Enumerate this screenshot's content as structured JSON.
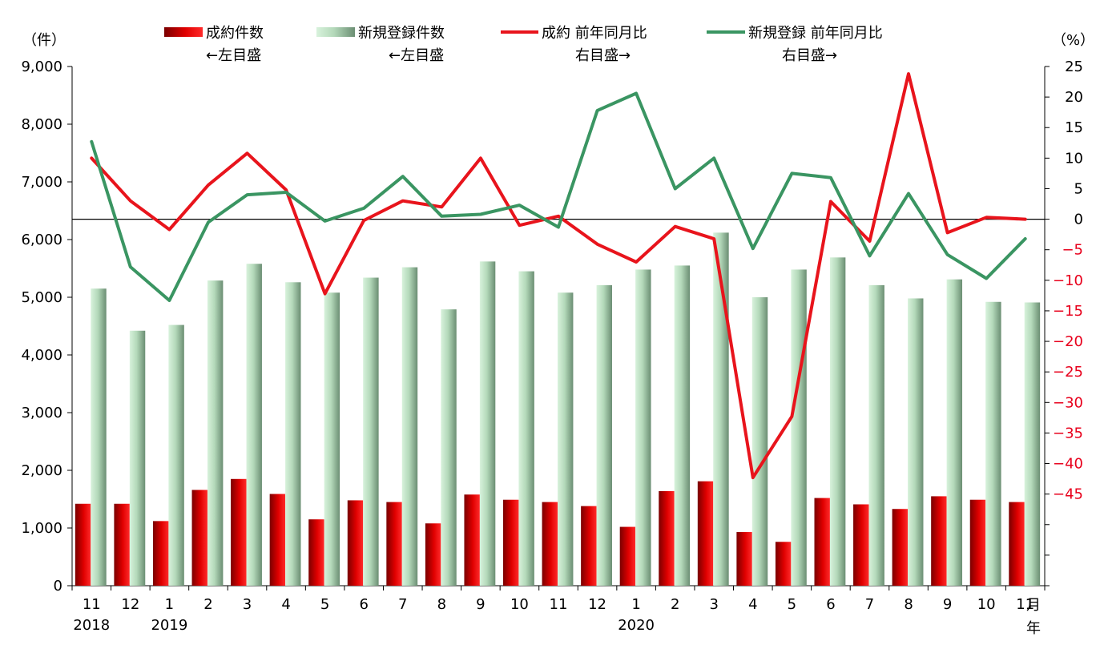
{
  "chart_data": {
    "type": "bar",
    "left_unit": "（件）",
    "right_unit": "（%）",
    "x_suffix_month": "月",
    "x_suffix_year": "年",
    "categories": [
      "11",
      "12",
      "1",
      "2",
      "3",
      "4",
      "5",
      "6",
      "7",
      "8",
      "9",
      "10",
      "11",
      "12",
      "1",
      "2",
      "3",
      "4",
      "5",
      "6",
      "7",
      "8",
      "9",
      "10",
      "11"
    ],
    "year_labels": [
      {
        "index": 0,
        "label": "2018"
      },
      {
        "index": 2,
        "label": "2019"
      },
      {
        "index": 14,
        "label": "2020"
      }
    ],
    "ylim_left": [
      0,
      9000
    ],
    "left_ticks": [
      "0",
      "1,000",
      "2,000",
      "3,000",
      "4,000",
      "5,000",
      "6,000",
      "7,000",
      "8,000",
      "9,000"
    ],
    "ylim_right": [
      -60,
      25
    ],
    "right_ticks": [
      25,
      20,
      15,
      10,
      5,
      0,
      -5,
      -10,
      -15,
      -20,
      -25,
      -30,
      -35,
      -40,
      -45
    ],
    "reference_line_right": 0,
    "series": [
      {
        "name": "成約件数",
        "legend_line2": "←左目盛",
        "kind": "bar",
        "axis": "left",
        "color": "#cc0000",
        "values": [
          1420,
          1420,
          1120,
          1660,
          1850,
          1590,
          1150,
          1480,
          1450,
          1080,
          1580,
          1490,
          1450,
          1380,
          1020,
          1640,
          1810,
          930,
          760,
          1520,
          1410,
          1330,
          1550,
          1490,
          1450
        ]
      },
      {
        "name": "新規登録件数",
        "legend_line2": "←左目盛",
        "kind": "bar",
        "axis": "left",
        "color": "#7aa784",
        "values": [
          5150,
          4420,
          4520,
          5290,
          5580,
          5260,
          5080,
          5340,
          5520,
          4790,
          5620,
          5450,
          5080,
          5210,
          5480,
          5550,
          6120,
          5000,
          5480,
          5690,
          5210,
          4980,
          5310,
          4920,
          4910
        ]
      },
      {
        "name": "成約 前年同月比",
        "legend_line2": "右目盛→",
        "kind": "line",
        "axis": "right",
        "color": "#e8141c",
        "values": [
          10,
          3,
          -1.7,
          5.6,
          10.8,
          4.8,
          -12.2,
          -0.2,
          3,
          2,
          10,
          -1,
          0.5,
          -4.1,
          -7,
          -1.2,
          -3.2,
          -42.3,
          -32.3,
          2.9,
          -3.6,
          23.8,
          -2.2,
          0.3,
          0
        ]
      },
      {
        "name": "新規登録 前年同月比",
        "legend_line2": "右目盛→",
        "kind": "line",
        "axis": "right",
        "color": "#3a9562",
        "values": [
          12.7,
          -7.8,
          -13.3,
          -0.5,
          4,
          4.4,
          -0.3,
          1.8,
          7,
          0.5,
          0.8,
          2.3,
          -1.3,
          17.8,
          20.6,
          5,
          10,
          -4.8,
          7.5,
          6.8,
          -6,
          4.2,
          -5.8,
          -9.7,
          -3.2
        ]
      }
    ]
  }
}
